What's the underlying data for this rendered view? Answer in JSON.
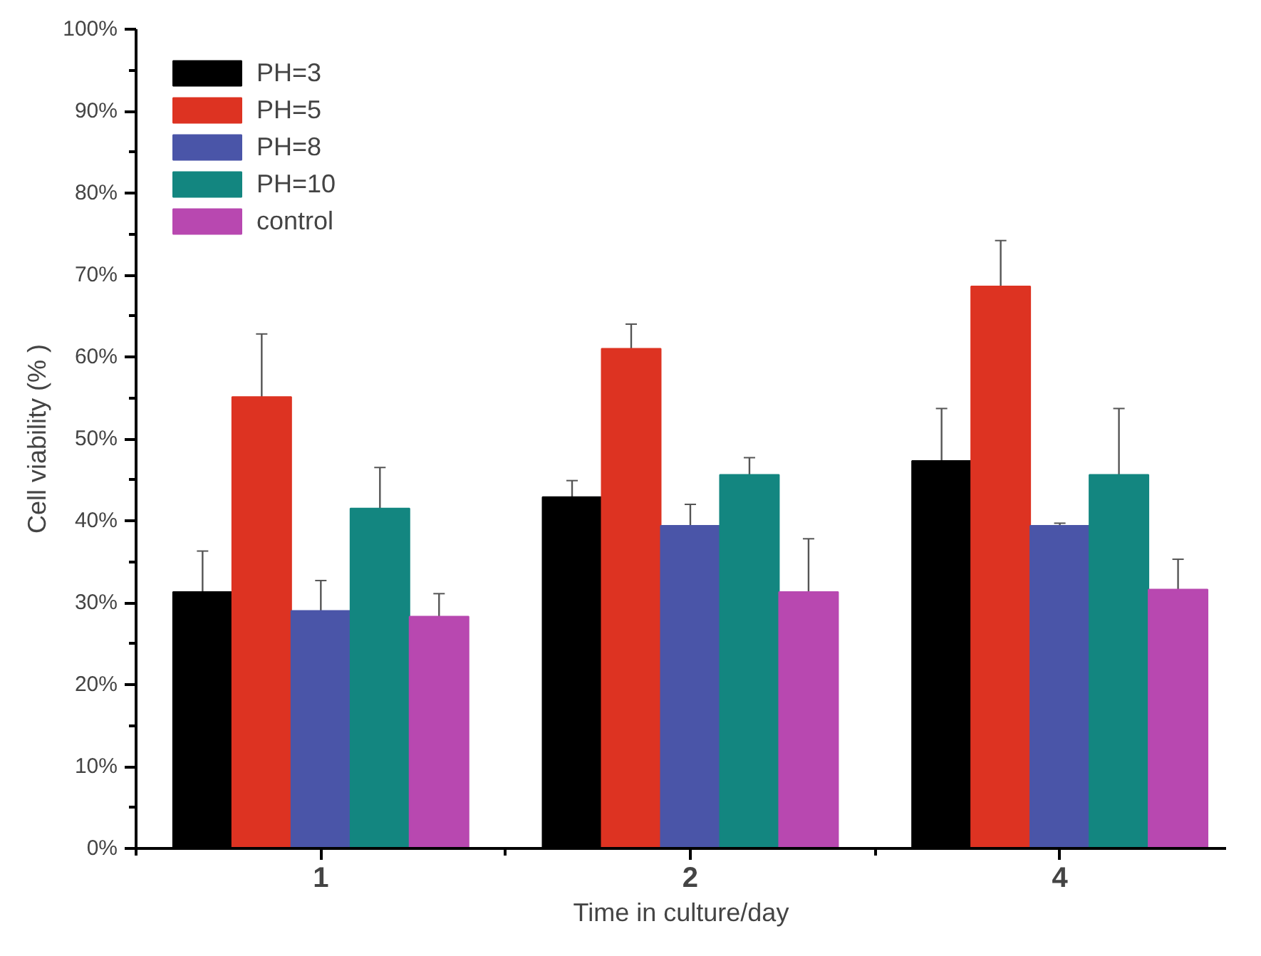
{
  "chart_data": {
    "type": "bar",
    "xlabel": "Time in culture/day",
    "ylabel": "Cell viability (% )",
    "categories": [
      "1",
      "2",
      "4"
    ],
    "ylim": [
      0,
      100
    ],
    "yticks": [
      {
        "value": 0,
        "label": "0%"
      },
      {
        "value": 10,
        "label": "10%"
      },
      {
        "value": 20,
        "label": "20%"
      },
      {
        "value": 30,
        "label": "30%"
      },
      {
        "value": 40,
        "label": "40%"
      },
      {
        "value": 50,
        "label": "50%"
      },
      {
        "value": 60,
        "label": "60%"
      },
      {
        "value": 70,
        "label": "70%"
      },
      {
        "value": 80,
        "label": "80%"
      },
      {
        "value": 90,
        "label": "90%"
      },
      {
        "value": 100,
        "label": "100%"
      }
    ],
    "grid": false,
    "legend": "top left",
    "series": [
      {
        "name": "PH=3",
        "color": "#000000",
        "values": [
          31.3,
          42.9,
          47.3
        ],
        "errors": [
          5,
          2,
          6.4
        ]
      },
      {
        "name": "PH=5",
        "color": "#dd3322",
        "values": [
          55.1,
          61,
          68.6
        ],
        "errors": [
          7.7,
          3,
          5.6
        ]
      },
      {
        "name": "PH=8",
        "color": "#4a55a8",
        "values": [
          29,
          39.4,
          39.4
        ],
        "errors": [
          3.7,
          2.6,
          0.3
        ]
      },
      {
        "name": "PH=10",
        "color": "#138680",
        "values": [
          41.5,
          45.6,
          45.6
        ],
        "errors": [
          5,
          2.1,
          8.1
        ]
      },
      {
        "name": "control",
        "color": "#b848b0",
        "values": [
          28.3,
          31.3,
          31.6
        ],
        "errors": [
          2.8,
          6.5,
          3.7
        ]
      }
    ]
  }
}
